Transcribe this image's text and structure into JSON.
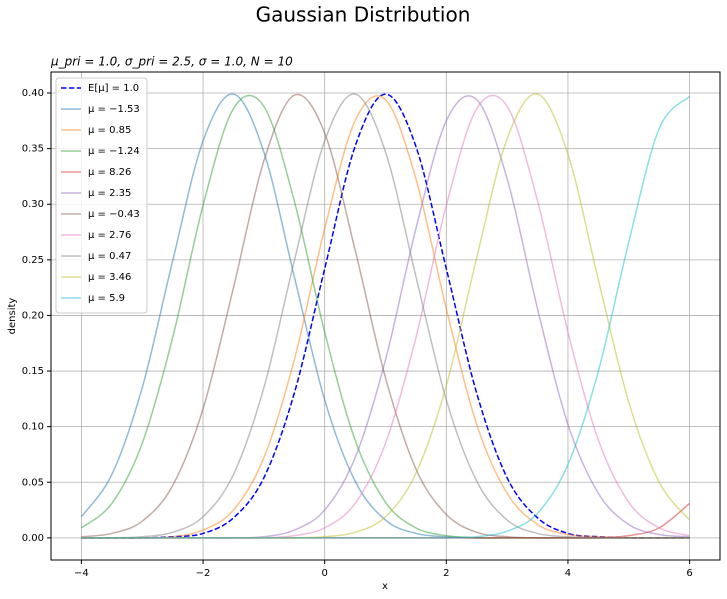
{
  "chart_data": {
    "type": "line",
    "title": "Gaussian Distribution",
    "subtitle": "μ_pri = 1.0, σ_pri = 2.5, σ = 1.0, N = 10",
    "xlabel": "x",
    "ylabel": "density",
    "x": [
      -4,
      -3.5,
      -3,
      -2.5,
      -2,
      -1.5,
      -1,
      -0.5,
      0,
      0.5,
      1,
      1.5,
      2,
      2.5,
      3,
      3.5,
      4,
      4.5,
      5,
      5.5,
      6
    ],
    "series": [
      {
        "name": "E[μ] = 1.0",
        "color": "#0000ff",
        "linestyle": "dashed",
        "alpha": 1,
        "values": [
          0,
          0,
          0,
          0.001,
          0.004,
          0.018,
          0.054,
          0.13,
          0.242,
          0.352,
          0.399,
          0.352,
          0.242,
          0.13,
          0.054,
          0.018,
          0.004,
          0.001,
          0,
          0,
          0
        ]
      },
      {
        "name": "μ = −1.53",
        "color": "#1f77b4",
        "linestyle": "solid",
        "alpha": 0.5,
        "values": [
          0.019,
          0.057,
          0.135,
          0.249,
          0.357,
          0.399,
          0.347,
          0.235,
          0.124,
          0.051,
          0.016,
          0.004,
          0.001,
          0,
          0,
          0,
          0,
          0,
          0,
          0,
          0
        ]
      },
      {
        "name": "μ = 0.85",
        "color": "#ff7f0e",
        "linestyle": "solid",
        "alpha": 0.5,
        "values": [
          0,
          0,
          0,
          0.001,
          0.007,
          0.025,
          0.072,
          0.16,
          0.278,
          0.375,
          0.394,
          0.323,
          0.206,
          0.102,
          0.04,
          0.012,
          0.003,
          0.001,
          0,
          0,
          0
        ]
      },
      {
        "name": "μ = −1.24",
        "color": "#2ca02c",
        "linestyle": "solid",
        "alpha": 0.5,
        "values": [
          0.009,
          0.031,
          0.085,
          0.18,
          0.299,
          0.386,
          0.388,
          0.303,
          0.185,
          0.088,
          0.032,
          0.009,
          0.002,
          0,
          0,
          0,
          0,
          0,
          0,
          0,
          0
        ]
      },
      {
        "name": "μ = 8.26",
        "color": "#d62728",
        "linestyle": "solid",
        "alpha": 0.5,
        "values": [
          0,
          0,
          0,
          0,
          0,
          0,
          0,
          0,
          0,
          0,
          0,
          0,
          0,
          0,
          0,
          0,
          0,
          0,
          0.002,
          0.009,
          0.031
        ]
      },
      {
        "name": "μ = 2.35",
        "color": "#9467bd",
        "linestyle": "solid",
        "alpha": 0.5,
        "values": [
          0,
          0,
          0,
          0,
          0,
          0,
          0.001,
          0.007,
          0.025,
          0.072,
          0.16,
          0.278,
          0.375,
          0.394,
          0.323,
          0.206,
          0.102,
          0.04,
          0.012,
          0.003,
          0.001
        ]
      },
      {
        "name": "μ = −0.43",
        "color": "#8c564b",
        "linestyle": "solid",
        "alpha": 0.5,
        "values": [
          0.001,
          0.004,
          0.015,
          0.047,
          0.116,
          0.225,
          0.339,
          0.398,
          0.364,
          0.259,
          0.144,
          0.062,
          0.021,
          0.005,
          0.001,
          0,
          0,
          0,
          0,
          0,
          0
        ]
      },
      {
        "name": "μ = 2.76",
        "color": "#e377c2",
        "linestyle": "solid",
        "alpha": 0.5,
        "values": [
          0,
          0,
          0,
          0,
          0,
          0,
          0,
          0.002,
          0.009,
          0.031,
          0.085,
          0.18,
          0.299,
          0.386,
          0.388,
          0.303,
          0.185,
          0.088,
          0.032,
          0.009,
          0.002
        ]
      },
      {
        "name": "μ = 0.47",
        "color": "#7f7f7f",
        "linestyle": "solid",
        "alpha": 0.5,
        "values": [
          0,
          0,
          0.001,
          0.005,
          0.019,
          0.057,
          0.135,
          0.249,
          0.357,
          0.399,
          0.347,
          0.235,
          0.124,
          0.051,
          0.016,
          0.004,
          0.001,
          0,
          0,
          0,
          0
        ]
      },
      {
        "name": "μ = 3.46",
        "color": "#bcbd22",
        "linestyle": "solid",
        "alpha": 0.5,
        "values": [
          0,
          0,
          0,
          0,
          0,
          0,
          0,
          0,
          0.001,
          0.005,
          0.019,
          0.058,
          0.137,
          0.252,
          0.359,
          0.399,
          0.345,
          0.232,
          0.122,
          0.05,
          0.016
        ]
      },
      {
        "name": "μ = 5.9",
        "color": "#17becf",
        "linestyle": "solid",
        "alpha": 0.5,
        "values": [
          0,
          0,
          0,
          0,
          0,
          0,
          0,
          0,
          0,
          0,
          0,
          0,
          0,
          0.001,
          0.006,
          0.022,
          0.066,
          0.15,
          0.266,
          0.368,
          0.397
        ]
      }
    ],
    "xlim": [
      -4.5,
      6.5
    ],
    "ylim": [
      -0.0199,
      0.4189
    ],
    "xticks": [
      {
        "value": -4,
        "label": "−4"
      },
      {
        "value": -2,
        "label": "−2"
      },
      0,
      2,
      4,
      6
    ],
    "yticks": [
      {
        "value": 0,
        "label": "0.00"
      },
      {
        "value": 0.05,
        "label": "0.05"
      },
      {
        "value": 0.1,
        "label": "0.10"
      },
      {
        "value": 0.15,
        "label": "0.15"
      },
      {
        "value": 0.2,
        "label": "0.20"
      },
      {
        "value": 0.25,
        "label": "0.25"
      },
      {
        "value": 0.3,
        "label": "0.30"
      },
      {
        "value": 0.35,
        "label": "0.35"
      },
      {
        "value": 0.4,
        "label": "0.40"
      }
    ],
    "grid": true,
    "legend": "upper left"
  }
}
